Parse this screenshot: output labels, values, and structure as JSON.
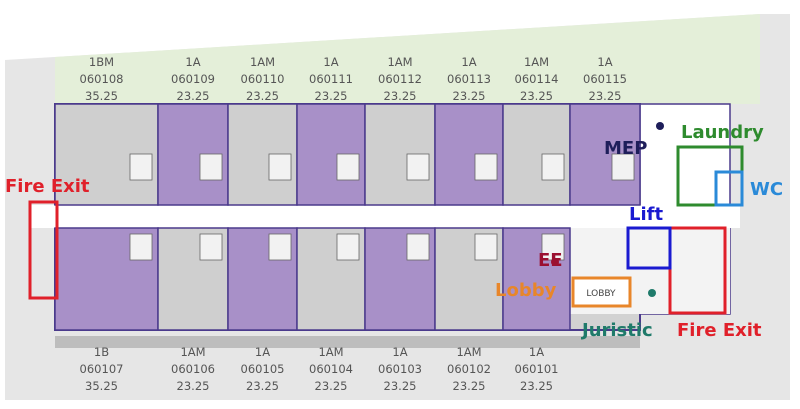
{
  "top_units": [
    {
      "type": "1BM",
      "number": "060108",
      "area": "35.25"
    },
    {
      "type": "1A",
      "number": "060109",
      "area": "23.25"
    },
    {
      "type": "1AM",
      "number": "060110",
      "area": "23.25"
    },
    {
      "type": "1A",
      "number": "060111",
      "area": "23.25"
    },
    {
      "type": "1AM",
      "number": "060112",
      "area": "23.25"
    },
    {
      "type": "1A",
      "number": "060113",
      "area": "23.25"
    },
    {
      "type": "1AM",
      "number": "060114",
      "area": "23.25"
    },
    {
      "type": "1A",
      "number": "060115",
      "area": "23.25"
    }
  ],
  "bottom_units": [
    {
      "type": "1B",
      "number": "060107",
      "area": "35.25"
    },
    {
      "type": "1AM",
      "number": "060106",
      "area": "23.25"
    },
    {
      "type": "1A",
      "number": "060105",
      "area": "23.25"
    },
    {
      "type": "1AM",
      "number": "060104",
      "area": "23.25"
    },
    {
      "type": "1A",
      "number": "060103",
      "area": "23.25"
    },
    {
      "type": "1AM",
      "number": "060102",
      "area": "23.25"
    },
    {
      "type": "1A",
      "number": "060101",
      "area": "23.25"
    }
  ],
  "labels": {
    "fire_exit_left": "Fire Exit",
    "fire_exit_right": "Fire Exit",
    "mep": "MEP",
    "laundry": "Laundry",
    "wc": "WC",
    "lift": "Lift",
    "ee": "EE",
    "lobby": "Lobby",
    "juristic": "Juristic",
    "lobby_room": "LOBBY"
  }
}
